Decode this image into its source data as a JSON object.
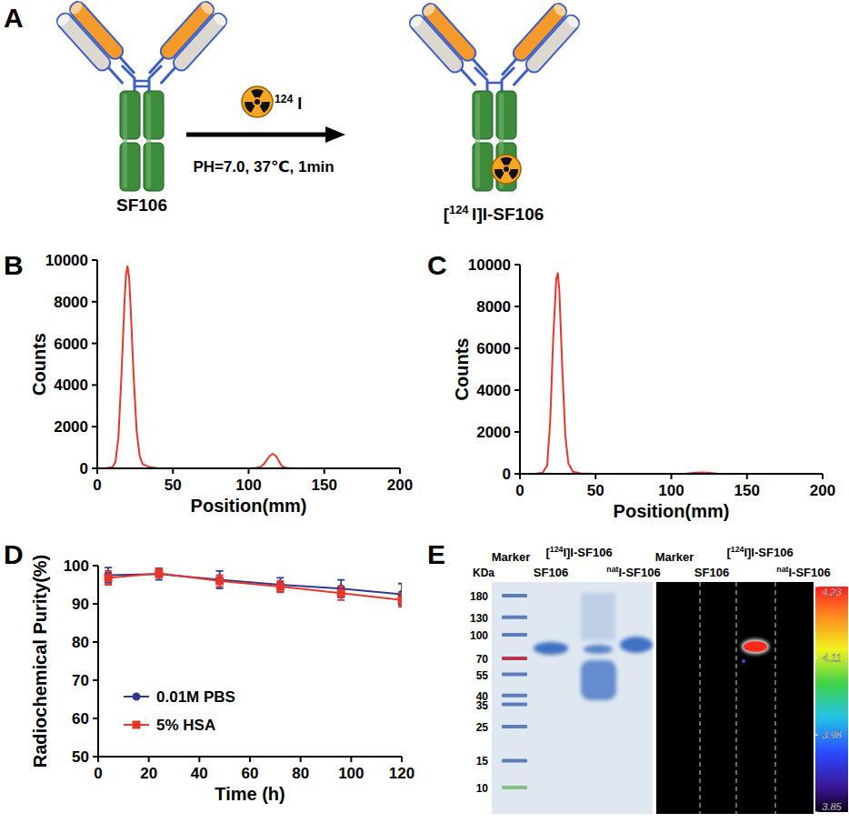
{
  "panel_labels": [
    "A",
    "B",
    "C",
    "D",
    "E"
  ],
  "scheme": {
    "reactant": "SF106",
    "reagent": [
      {
        "text": "124",
        "sup": true
      },
      {
        "text": " I"
      }
    ],
    "conditions": "PH=7.0, 37℃, 1min",
    "product": [
      {
        "text": "["
      },
      {
        "text": "124 ",
        "sup": true
      },
      {
        "text": "I]I-SF106"
      }
    ]
  },
  "chart_data": [
    {
      "type": "line",
      "x": [
        0,
        5,
        10,
        12,
        14,
        16,
        18,
        19,
        20,
        21,
        22,
        24,
        26,
        28,
        30,
        35,
        40,
        50,
        100,
        105,
        108,
        110,
        112,
        114,
        116,
        118,
        120,
        122,
        125,
        130,
        150,
        200
      ],
      "series": [
        {
          "color": "#e8352c",
          "values": [
            0,
            0,
            50,
            300,
            1500,
            4500,
            8000,
            9300,
            9700,
            9200,
            7800,
            4500,
            1800,
            600,
            200,
            50,
            0,
            0,
            0,
            20,
            80,
            200,
            400,
            600,
            700,
            600,
            350,
            100,
            20,
            0,
            0,
            0
          ]
        }
      ],
      "xlim": [
        0,
        200
      ],
      "xticks": [
        0,
        50,
        100,
        150,
        200
      ],
      "ylim": [
        0,
        10000
      ],
      "yticks": [
        0,
        2000,
        4000,
        6000,
        8000,
        10000
      ],
      "x_label": "Position(mm)",
      "y_label": "Counts"
    },
    {
      "type": "line",
      "x": [
        0,
        5,
        10,
        15,
        18,
        20,
        22,
        24,
        25,
        26,
        28,
        30,
        32,
        35,
        40,
        50,
        100,
        110,
        115,
        120,
        125,
        130,
        150,
        200
      ],
      "series": [
        {
          "color": "#e8352c",
          "values": [
            0,
            0,
            0,
            50,
            400,
            2500,
            6500,
            9300,
            9600,
            8800,
            5000,
            1800,
            500,
            100,
            20,
            0,
            0,
            10,
            40,
            60,
            40,
            10,
            0,
            0
          ]
        }
      ],
      "xlim": [
        0,
        200
      ],
      "xticks": [
        0,
        50,
        100,
        150,
        200
      ],
      "ylim": [
        0,
        10000
      ],
      "yticks": [
        0,
        2000,
        4000,
        6000,
        8000,
        10000
      ],
      "x_label": "Position(mm)",
      "y_label": "Counts"
    },
    {
      "type": "line",
      "x": [
        4,
        24,
        48,
        72,
        96,
        120
      ],
      "series": [
        {
          "name": "0.01M PBS",
          "color": "#2e3b91",
          "marker": "circle",
          "values": [
            97.5,
            97.8,
            96.3,
            95.0,
            94.0,
            92.5
          ],
          "errors": [
            2.0,
            1.5,
            2.3,
            1.8,
            2.3,
            2.8
          ]
        },
        {
          "name": "5% HSA",
          "color": "#e8352c",
          "marker": "square",
          "values": [
            96.8,
            98.0,
            96.0,
            94.5,
            92.8,
            91.0
          ],
          "errors": [
            1.8,
            1.2,
            1.5,
            1.5,
            1.8,
            1.8
          ]
        }
      ],
      "xlim": [
        0,
        120
      ],
      "xticks": [
        0,
        20,
        40,
        60,
        80,
        100,
        120
      ],
      "ylim": [
        50,
        100
      ],
      "yticks": [
        50,
        60,
        70,
        80,
        90,
        100
      ],
      "x_label": "Time (h)",
      "y_label": "Radiochemical Purity(%)",
      "legend": "lower left"
    }
  ],
  "gel": {
    "unit": "KDa",
    "marker_sizes": [
      180,
      130,
      100,
      70,
      55,
      40,
      35,
      25,
      15,
      10
    ],
    "lanes": [
      [
        {
          "text": "Marker"
        }
      ],
      [
        {
          "text": "SF106"
        }
      ],
      [
        {
          "text": "["
        },
        {
          "text": "124",
          "sup": true
        },
        {
          "text": "I]I-SF106"
        }
      ],
      [
        {
          "text": "nat",
          "sup": true
        },
        {
          "text": "I-SF106"
        }
      ]
    ],
    "colorbar": {
      "range": [
        3.85,
        4.23
      ],
      "ticks": [
        3.85,
        3.98,
        4.11,
        4.23
      ]
    }
  }
}
